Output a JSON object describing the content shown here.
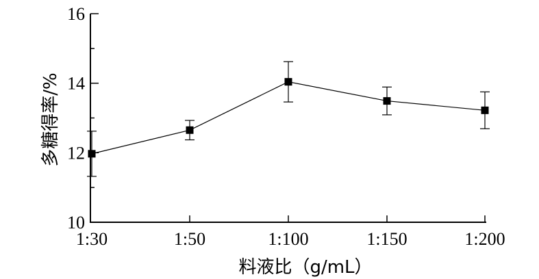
{
  "chart_data": {
    "type": "line",
    "title": "",
    "xlabel": "料液比（g/mL）",
    "ylabel": "多糖得率/%",
    "categories": [
      "1:30",
      "1:50",
      "1:100",
      "1:150",
      "1:200"
    ],
    "values": [
      11.97,
      12.65,
      14.04,
      13.49,
      13.22
    ],
    "error": [
      0.65,
      0.28,
      0.58,
      0.4,
      0.53
    ],
    "ylim": [
      10,
      16
    ],
    "yticks": [
      "10",
      "12",
      "14",
      "16"
    ],
    "grid": false,
    "marker": "square",
    "color": "#000000"
  }
}
